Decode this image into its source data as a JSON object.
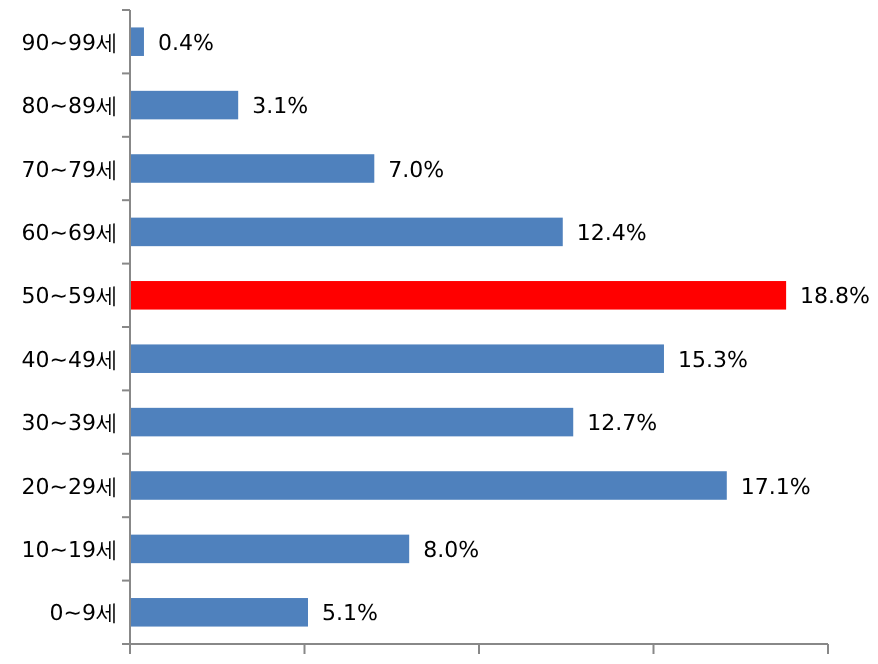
{
  "chart_data": {
    "type": "bar",
    "orientation": "horizontal",
    "categories": [
      "90~99세",
      "80~89세",
      "70~79세",
      "60~69세",
      "50~59세",
      "40~49세",
      "30~39세",
      "20~29세",
      "10~19세",
      "0~9세"
    ],
    "values": [
      0.4,
      3.1,
      7.0,
      12.4,
      18.8,
      15.3,
      12.7,
      17.1,
      8.0,
      5.1
    ],
    "value_labels": [
      "0.4%",
      "3.1%",
      "7.0%",
      "12.4%",
      "18.8%",
      "15.3%",
      "12.7%",
      "17.1%",
      "8.0%",
      "5.1%"
    ],
    "colors": [
      "#4f81bd",
      "#4f81bd",
      "#4f81bd",
      "#4f81bd",
      "#ff0000",
      "#4f81bd",
      "#4f81bd",
      "#4f81bd",
      "#4f81bd",
      "#4f81bd"
    ],
    "xlim": [
      0,
      20
    ],
    "xticks": [
      {
        "value": 0,
        "label": null
      },
      {
        "value": 5,
        "label": null
      },
      {
        "value": 10,
        "label": null
      },
      {
        "value": 15,
        "label": null
      },
      {
        "value": 20,
        "label": null
      }
    ],
    "tick_labels": "y"
  }
}
